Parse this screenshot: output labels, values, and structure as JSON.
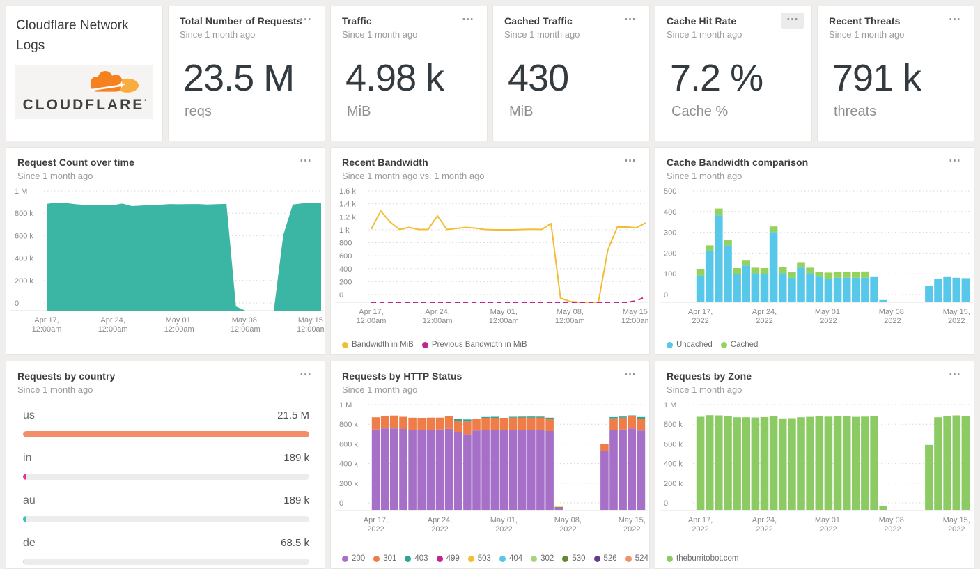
{
  "icons": {
    "panel_menu": "⋯"
  },
  "logo": {
    "title": "Cloudflare Network Logs",
    "brand": "CLOUDFLARE",
    "trademark": "'"
  },
  "stats": [
    {
      "title": "Total Number of Requests",
      "subtitle": "Since 1 month ago",
      "value": "23.5 M",
      "unit": "reqs"
    },
    {
      "title": "Traffic",
      "subtitle": "Since 1 month ago",
      "value": "4.98 k",
      "unit": "MiB"
    },
    {
      "title": "Cached Traffic",
      "subtitle": "Since 1 month ago",
      "value": "430",
      "unit": "MiB"
    },
    {
      "title": "Cache Hit Rate",
      "subtitle": "Since 1 month ago",
      "value": "7.2 %",
      "unit": "Cache %"
    },
    {
      "title": "Recent Threats",
      "subtitle": "Since 1 month ago",
      "value": "791 k",
      "unit": "threats"
    }
  ],
  "country": {
    "title": "Requests by country",
    "subtitle": "Since 1 month ago",
    "rows": [
      {
        "code": "us",
        "value": "21.5 M",
        "pct": 100,
        "color": "#F28F68"
      },
      {
        "code": "in",
        "value": "189 k",
        "pct": 1.1,
        "color": "#E0368C"
      },
      {
        "code": "au",
        "value": "189 k",
        "pct": 1.1,
        "color": "#3FC0AE"
      },
      {
        "code": "de",
        "value": "68.5 k",
        "pct": 0.5,
        "color": "#cfcfcf"
      }
    ]
  },
  "chart_data": [
    {
      "id": "request_count",
      "panel_title": "Request Count over time",
      "subtitle": "Since 1 month ago",
      "type": "area",
      "ymax": 1000000,
      "ylim": [
        0,
        1000000
      ],
      "y_ticks": [
        "1 M",
        "800 k",
        "600 k",
        "400 k",
        "200 k",
        "0"
      ],
      "x_tick_indices": [
        0,
        7,
        14,
        21,
        28
      ],
      "x_tick_labels": [
        [
          "Apr 17,",
          "12:00am"
        ],
        [
          "Apr 24,",
          "12:00am"
        ],
        [
          "May 01,",
          "12:00am"
        ],
        [
          "May 08,",
          "12:00am"
        ],
        [
          "May 15,",
          "12:00am"
        ]
      ],
      "x_start": "Apr 17 2022",
      "x_end": "May 16 2022",
      "grid": "dotted",
      "series": [
        {
          "name": "Requests",
          "color": "#3cb6a4",
          "values": [
            890000,
            901000,
            898000,
            888000,
            882000,
            880000,
            882000,
            880000,
            893000,
            872000,
            876000,
            880000,
            884000,
            889000,
            887000,
            889000,
            889000,
            885000,
            888000,
            890000,
            35000,
            0,
            0,
            0,
            0,
            630000,
            885000,
            895000,
            900000,
            896000
          ]
        }
      ]
    },
    {
      "id": "recent_bandwidth",
      "panel_title": "Recent Bandwidth",
      "subtitle": "Since 1 month ago vs. 1 month ago",
      "type": "line",
      "ymax": 1600,
      "ylim": [
        0,
        1600
      ],
      "y_ticks": [
        "1.6 k",
        "1.4 k",
        "1.2 k",
        "1 k",
        "800",
        "600",
        "400",
        "200",
        "0"
      ],
      "x_tick_indices": [
        0,
        7,
        14,
        21,
        28
      ],
      "x_tick_labels": [
        [
          "Apr 17,",
          "12:00am"
        ],
        [
          "Apr 24,",
          "12:00am"
        ],
        [
          "May 01,",
          "12:00am"
        ],
        [
          "May 08,",
          "12:00am"
        ],
        [
          "May 15,",
          "12:00am"
        ]
      ],
      "x_start": "Apr 17 2022",
      "x_end": "May 16 2022",
      "grid": "dotted",
      "legend_position": "bottom",
      "series": [
        {
          "name": "Bandwidth in MiB",
          "color": "#F2BC35",
          "dash": false,
          "values": [
            1050,
            1310,
            1150,
            1045,
            1075,
            1045,
            1045,
            1240,
            1045,
            1060,
            1075,
            1065,
            1045,
            1040,
            1040,
            1040,
            1045,
            1048,
            1045,
            1130,
            60,
            10,
            0,
            0,
            0,
            750,
            1080,
            1080,
            1070,
            1140
          ]
        },
        {
          "name": "Previous Bandwidth in MiB",
          "color": "#C02490",
          "dash": true,
          "values": [
            0,
            0,
            0,
            0,
            0,
            0,
            0,
            0,
            0,
            0,
            0,
            0,
            0,
            0,
            0,
            0,
            0,
            0,
            0,
            0,
            0,
            0,
            0,
            0,
            0,
            0,
            0,
            0,
            20,
            80
          ]
        }
      ],
      "legend": [
        {
          "label": "Bandwidth in MiB",
          "color": "#F2BC35"
        },
        {
          "label": "Previous Bandwidth in MiB",
          "color": "#C02490"
        }
      ]
    },
    {
      "id": "cache_bandwidth",
      "panel_title": "Cache Bandwidth comparison",
      "subtitle": "Since 1 month ago",
      "type": "stacked-bar",
      "ymax": 500,
      "ylim": [
        0,
        500
      ],
      "y_ticks": [
        "500",
        "400",
        "300",
        "200",
        "100",
        "0"
      ],
      "x_tick_indices": [
        0,
        7,
        14,
        21,
        28
      ],
      "x_tick_labels": [
        [
          "Apr 17,",
          "2022"
        ],
        [
          "Apr 24,",
          "2022"
        ],
        [
          "May 01,",
          "2022"
        ],
        [
          "May 08,",
          "2022"
        ],
        [
          "May 15,",
          "2022"
        ]
      ],
      "x_start": "Apr 17 2022",
      "x_end": "May 16 2022",
      "grid": "dotted",
      "legend_position": "bottom",
      "series": [
        {
          "name": "Uncached",
          "color": "#57C7EA",
          "values": [
            120,
            230,
            390,
            255,
            125,
            165,
            130,
            125,
            315,
            130,
            110,
            155,
            130,
            115,
            105,
            110,
            110,
            110,
            110,
            113,
            10,
            0,
            0,
            0,
            0,
            75,
            105,
            113,
            110,
            108
          ]
        },
        {
          "name": "Cached",
          "color": "#94D25D",
          "values": [
            30,
            25,
            30,
            25,
            28,
            22,
            25,
            28,
            25,
            28,
            25,
            25,
            25,
            22,
            28,
            25,
            25,
            25,
            28,
            0,
            0,
            0,
            0,
            0,
            0,
            0,
            0,
            0,
            0,
            0
          ]
        }
      ],
      "legend": [
        {
          "label": "Uncached",
          "color": "#57C7EA"
        },
        {
          "label": "Cached",
          "color": "#94D25D"
        }
      ]
    },
    {
      "id": "http_status",
      "panel_title": "Requests by HTTP Status",
      "subtitle": "Since 1 month ago",
      "type": "stacked-bar",
      "ymax": 1000000,
      "ylim": [
        0,
        1000000
      ],
      "y_ticks": [
        "1 M",
        "800 k",
        "600 k",
        "400 k",
        "200 k",
        "0"
      ],
      "x_tick_indices": [
        0,
        7,
        14,
        21,
        28
      ],
      "x_tick_labels": [
        [
          "Apr 17,",
          "2022"
        ],
        [
          "Apr 24,",
          "2022"
        ],
        [
          "May 01,",
          "2022"
        ],
        [
          "May 08,",
          "2022"
        ],
        [
          "May 15,",
          "2022"
        ]
      ],
      "x_start": "Apr 17 2022",
      "x_end": "May 16 2022",
      "grid": "dotted",
      "legend_position": "bottom",
      "series": [
        {
          "name": "200",
          "color": "#A66FC8",
          "values": [
            765000,
            775000,
            775000,
            770000,
            763000,
            763000,
            762000,
            765000,
            770000,
            740000,
            720000,
            755000,
            760000,
            760000,
            763000,
            762000,
            760000,
            762000,
            760000,
            750000,
            20000,
            0,
            0,
            0,
            0,
            560000,
            760000,
            765000,
            775000,
            755000
          ]
        },
        {
          "name": "301",
          "color": "#EF7D49",
          "values": [
            115000,
            120000,
            122000,
            115000,
            113000,
            112000,
            115000,
            112000,
            120000,
            105000,
            120000,
            110000,
            115000,
            115000,
            112000,
            115000,
            118000,
            115000,
            118000,
            112000,
            10000,
            0,
            0,
            0,
            0,
            70000,
            110000,
            112000,
            115000,
            112000
          ]
        },
        {
          "name": "403",
          "color": "#2FA493",
          "values": [
            0,
            0,
            0,
            0,
            0,
            0,
            0,
            0,
            0,
            18000,
            20000,
            0,
            8000,
            10000,
            0,
            8000,
            8000,
            10000,
            8000,
            14000,
            0,
            0,
            0,
            0,
            0,
            0,
            12000,
            10000,
            8000,
            16000
          ]
        },
        {
          "name": "530",
          "color": "#618A2F",
          "values": [
            0,
            0,
            0,
            0,
            0,
            0,
            0,
            0,
            0,
            0,
            0,
            0,
            0,
            0,
            0,
            0,
            0,
            0,
            0,
            0,
            5000,
            0,
            0,
            0,
            0,
            0,
            0,
            0,
            0,
            0
          ]
        }
      ],
      "legend": [
        {
          "label": "200",
          "color": "#A66FC8"
        },
        {
          "label": "301",
          "color": "#EF7D49"
        },
        {
          "label": "403",
          "color": "#2FA493"
        },
        {
          "label": "499",
          "color": "#C0268E"
        },
        {
          "label": "503",
          "color": "#F5BE32"
        },
        {
          "label": "404",
          "color": "#56C7EA"
        },
        {
          "label": "302",
          "color": "#A5D482"
        },
        {
          "label": "530",
          "color": "#618A2F"
        },
        {
          "label": "526",
          "color": "#663A91"
        },
        {
          "label": "524",
          "color": "#F2926B"
        }
      ]
    },
    {
      "id": "zone",
      "panel_title": "Requests by Zone",
      "subtitle": "Since 1 month ago",
      "type": "stacked-bar",
      "ymax": 1000000,
      "ylim": [
        0,
        1000000
      ],
      "y_ticks": [
        "1 M",
        "800 k",
        "600 k",
        "400 k",
        "200 k",
        "0"
      ],
      "x_tick_indices": [
        0,
        7,
        14,
        21,
        28
      ],
      "x_tick_labels": [
        [
          "Apr 17,",
          "2022"
        ],
        [
          "Apr 24,",
          "2022"
        ],
        [
          "May 01,",
          "2022"
        ],
        [
          "May 08,",
          "2022"
        ],
        [
          "May 15,",
          "2022"
        ]
      ],
      "x_start": "Apr 17 2022",
      "x_end": "May 16 2022",
      "grid": "dotted",
      "legend_position": "bottom",
      "series": [
        {
          "name": "theburritobot.com",
          "color": "#8CCB63",
          "values": [
            885000,
            900000,
            898000,
            888000,
            880000,
            880000,
            878000,
            882000,
            893000,
            870000,
            872000,
            880000,
            884000,
            888000,
            886000,
            888000,
            888000,
            884000,
            886000,
            888000,
            40000,
            0,
            0,
            0,
            0,
            620000,
            880000,
            890000,
            898000,
            895000
          ]
        }
      ],
      "legend": [
        {
          "label": "theburritobot.com",
          "color": "#8CCB63"
        }
      ]
    }
  ]
}
